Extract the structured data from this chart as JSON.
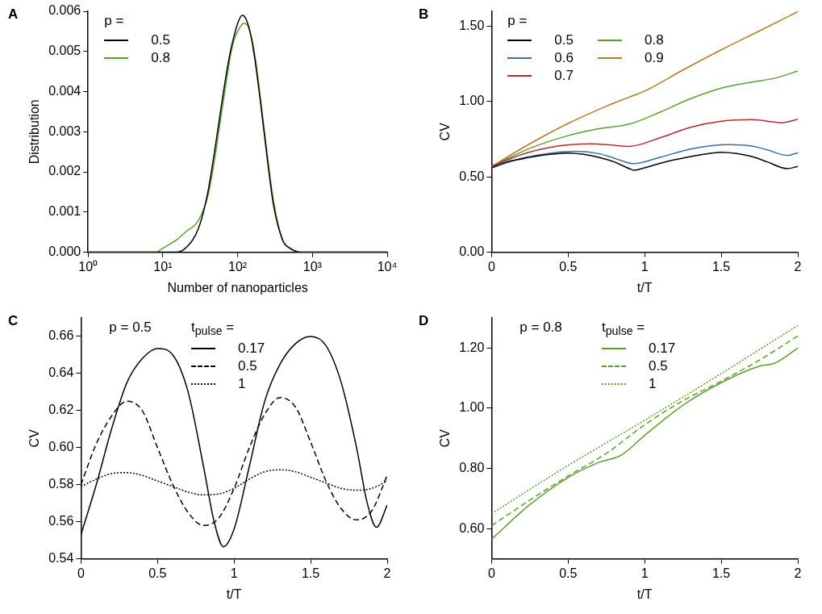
{
  "chart_data": [
    {
      "type": "line",
      "title": "A",
      "xlabel": "Number of nanoparticles",
      "ylabel": "Distribution",
      "legend_title": "p =",
      "legend": "top left",
      "log": "x",
      "grid": false,
      "marker": "none",
      "xlim": [
        1,
        10000
      ],
      "xticks": [
        {
          "value": 1,
          "label": "10⁰"
        },
        {
          "value": 10,
          "label": "10¹"
        },
        {
          "value": 100,
          "label": "10²"
        },
        {
          "value": 1000,
          "label": "10³"
        },
        {
          "value": 10000,
          "label": "10⁴"
        }
      ],
      "ylim": [
        0,
        0.006
      ],
      "yticks": [
        {
          "value": 0,
          "label": "0.000"
        },
        {
          "value": 0.001,
          "label": "0.001"
        },
        {
          "value": 0.002,
          "label": "0.002"
        },
        {
          "value": 0.003,
          "label": "0.003"
        },
        {
          "value": 0.004,
          "label": "0.004"
        },
        {
          "value": 0.005,
          "label": "0.005"
        },
        {
          "value": 0.006,
          "label": "0.006"
        }
      ],
      "series": [
        {
          "name": "0.5",
          "color": "#000000",
          "x": [
            1,
            10,
            15,
            20,
            30,
            40,
            50,
            60,
            70,
            80,
            90,
            100,
            115,
            130,
            150,
            170,
            200,
            250,
            300,
            400,
            500,
            700,
            1000,
            10000
          ],
          "values": [
            0,
            0,
            0,
            0.0001,
            0.0006,
            0.0015,
            0.0026,
            0.0036,
            0.0044,
            0.005,
            0.0054,
            0.0057,
            0.0059,
            0.0058,
            0.0054,
            0.0048,
            0.0038,
            0.0023,
            0.0012,
            0.0003,
            0.0001,
            0,
            0,
            0
          ]
        },
        {
          "name": "0.8",
          "color": "#5aa02c",
          "x": [
            1,
            5,
            8,
            10,
            15,
            20,
            30,
            40,
            50,
            60,
            70,
            80,
            90,
            100,
            120,
            140,
            170,
            200,
            250,
            300,
            400,
            500,
            700,
            10000
          ],
          "values": [
            0,
            0,
            0,
            0.0001,
            0.0003,
            0.0005,
            0.0008,
            0.0014,
            0.0024,
            0.0034,
            0.0042,
            0.0049,
            0.0053,
            0.0055,
            0.0057,
            0.0056,
            0.0049,
            0.0039,
            0.0024,
            0.0013,
            0.0003,
            0.0001,
            0,
            0
          ]
        }
      ]
    },
    {
      "type": "line",
      "title": "B",
      "xlabel": "t/T",
      "ylabel": "CV",
      "legend_title": "p =",
      "legend": "top left",
      "grid": false,
      "marker": "none",
      "xlim": [
        0,
        2
      ],
      "xticks": [
        0,
        0.5,
        1,
        1.5,
        2
      ],
      "ylim": [
        0,
        1.6
      ],
      "yticks": [
        {
          "value": 0,
          "label": "0.00"
        },
        {
          "value": 0.5,
          "label": "0.50"
        },
        {
          "value": 1,
          "label": "1.00"
        },
        {
          "value": 1.5,
          "label": "1.50"
        }
      ],
      "series": [
        {
          "name": "0.5",
          "color": "#000000",
          "x": [
            0,
            0.1,
            0.2,
            0.3,
            0.4,
            0.5,
            0.6,
            0.7,
            0.8,
            0.9,
            0.93,
            1,
            1.1,
            1.2,
            1.3,
            1.4,
            1.5,
            1.6,
            1.7,
            1.8,
            1.93,
            2
          ],
          "values": [
            0.56,
            0.6,
            0.62,
            0.64,
            0.652,
            0.658,
            0.65,
            0.63,
            0.6,
            0.555,
            0.545,
            0.56,
            0.59,
            0.615,
            0.635,
            0.653,
            0.663,
            0.655,
            0.635,
            0.6,
            0.555,
            0.57
          ]
        },
        {
          "name": "0.6",
          "color": "#3a6ea5",
          "x": [
            0,
            0.2,
            0.4,
            0.55,
            0.7,
            0.8,
            0.93,
            1.1,
            1.3,
            1.55,
            1.7,
            1.8,
            1.93,
            2
          ],
          "values": [
            0.56,
            0.625,
            0.66,
            0.67,
            0.655,
            0.625,
            0.588,
            0.63,
            0.685,
            0.714,
            0.705,
            0.68,
            0.643,
            0.66
          ]
        },
        {
          "name": "0.7",
          "color": "#c0272d",
          "x": [
            0,
            0.2,
            0.4,
            0.65,
            0.8,
            0.9,
            1.1,
            1.3,
            1.5,
            1.7,
            1.9,
            2
          ],
          "values": [
            0.57,
            0.65,
            0.7,
            0.72,
            0.71,
            0.703,
            0.76,
            0.83,
            0.87,
            0.88,
            0.861,
            0.883
          ]
        },
        {
          "name": "0.8",
          "color": "#5aa02c",
          "x": [
            0,
            0.25,
            0.5,
            0.7,
            0.9,
            1.1,
            1.3,
            1.5,
            1.7,
            1.85,
            2
          ],
          "values": [
            0.57,
            0.69,
            0.774,
            0.82,
            0.851,
            0.93,
            1.02,
            1.09,
            1.13,
            1.156,
            1.203
          ]
        },
        {
          "name": "0.9",
          "color": "#b07c2a",
          "x": [
            0,
            0.25,
            0.5,
            0.75,
            0.9,
            1,
            1.25,
            1.5,
            1.75,
            2
          ],
          "values": [
            0.57,
            0.72,
            0.855,
            0.97,
            1.03,
            1.07,
            1.21,
            1.344,
            1.47,
            1.598
          ]
        }
      ]
    },
    {
      "type": "line",
      "title": "C",
      "xlabel": "t/T",
      "ylabel": "CV",
      "legend_title": "t$_{pulse}$ =",
      "legend": "top",
      "annotations": [
        "p = 0.5"
      ],
      "grid": false,
      "marker": "none",
      "xlim": [
        0,
        2
      ],
      "xticks": [
        0,
        0.5,
        1,
        1.5,
        2
      ],
      "ylim": [
        0.54,
        0.67
      ],
      "yticks": [
        0.54,
        0.56,
        0.58,
        {
          "value": 0.6,
          "label": "0.60"
        },
        0.62,
        0.64,
        0.66
      ],
      "series": [
        {
          "name": "0.17",
          "color": "#000000",
          "line_style": "solid",
          "x": [
            0,
            0.1,
            0.2,
            0.3,
            0.4,
            0.5,
            0.6,
            0.7,
            0.8,
            0.87,
            0.93,
            1,
            1.1,
            1.2,
            1.3,
            1.4,
            1.5,
            1.6,
            1.7,
            1.8,
            1.87,
            1.93,
            2
          ],
          "values": [
            0.553,
            0.58,
            0.61,
            0.635,
            0.648,
            0.6535,
            0.65,
            0.63,
            0.59,
            0.56,
            0.5465,
            0.556,
            0.59,
            0.625,
            0.645,
            0.656,
            0.66,
            0.655,
            0.635,
            0.6,
            0.57,
            0.557,
            0.569
          ]
        },
        {
          "name": "0.5",
          "color": "#000000",
          "line_style": "dashed",
          "x": [
            0,
            0.1,
            0.2,
            0.3,
            0.4,
            0.5,
            0.6,
            0.7,
            0.8,
            0.9,
            1,
            1.1,
            1.2,
            1.3,
            1.4,
            1.5,
            1.6,
            1.7,
            1.8,
            1.9,
            2
          ],
          "values": [
            0.58,
            0.602,
            0.617,
            0.625,
            0.62,
            0.6,
            0.58,
            0.565,
            0.558,
            0.562,
            0.578,
            0.6,
            0.618,
            0.627,
            0.622,
            0.603,
            0.582,
            0.567,
            0.561,
            0.566,
            0.585
          ]
        },
        {
          "name": "1",
          "color": "#000000",
          "line_style": "dotted",
          "x": [
            0,
            0.1,
            0.2,
            0.3,
            0.4,
            0.5,
            0.6,
            0.7,
            0.8,
            0.9,
            1,
            1.1,
            1.2,
            1.3,
            1.4,
            1.5,
            1.6,
            1.7,
            1.8,
            1.9,
            2
          ],
          "values": [
            0.579,
            0.583,
            0.586,
            0.5865,
            0.585,
            0.582,
            0.579,
            0.576,
            0.5745,
            0.575,
            0.578,
            0.583,
            0.587,
            0.588,
            0.587,
            0.584,
            0.581,
            0.578,
            0.577,
            0.578,
            0.582
          ]
        }
      ]
    },
    {
      "type": "line",
      "title": "D",
      "xlabel": "t/T",
      "ylabel": "CV",
      "legend_title": "t$_{pulse}$ =",
      "legend": "top",
      "annotations": [
        "p = 0.8"
      ],
      "grid": false,
      "marker": "none",
      "xlim": [
        0,
        2
      ],
      "xticks": [
        0,
        0.5,
        1,
        1.5,
        2
      ],
      "ylim": [
        0.5,
        1.3
      ],
      "yticks": [
        {
          "value": 0.6,
          "label": "0.60"
        },
        {
          "value": 0.8,
          "label": "0.80"
        },
        {
          "value": 1,
          "label": "1.00"
        },
        {
          "value": 1.2,
          "label": "1.20"
        }
      ],
      "series": [
        {
          "name": "0.17",
          "color": "#5aa02c",
          "line_style": "solid",
          "x": [
            0,
            0.25,
            0.5,
            0.7,
            0.85,
            1,
            1.25,
            1.5,
            1.75,
            1.85,
            2
          ],
          "values": [
            0.565,
            0.68,
            0.77,
            0.82,
            0.845,
            0.91,
            1.01,
            1.085,
            1.14,
            1.15,
            1.2
          ]
        },
        {
          "name": "0.5",
          "color": "#5aa02c",
          "line_style": "dashed",
          "x": [
            0,
            0.25,
            0.5,
            0.75,
            1,
            1.25,
            1.5,
            1.75,
            2
          ],
          "values": [
            0.61,
            0.695,
            0.775,
            0.85,
            0.945,
            1.025,
            1.09,
            1.16,
            1.24
          ]
        },
        {
          "name": "1",
          "color": "#5aa02c",
          "line_style": "dotted",
          "x": [
            0,
            0.5,
            1,
            1.5,
            2
          ],
          "values": [
            0.65,
            0.81,
            0.96,
            1.115,
            1.275
          ]
        }
      ]
    }
  ]
}
